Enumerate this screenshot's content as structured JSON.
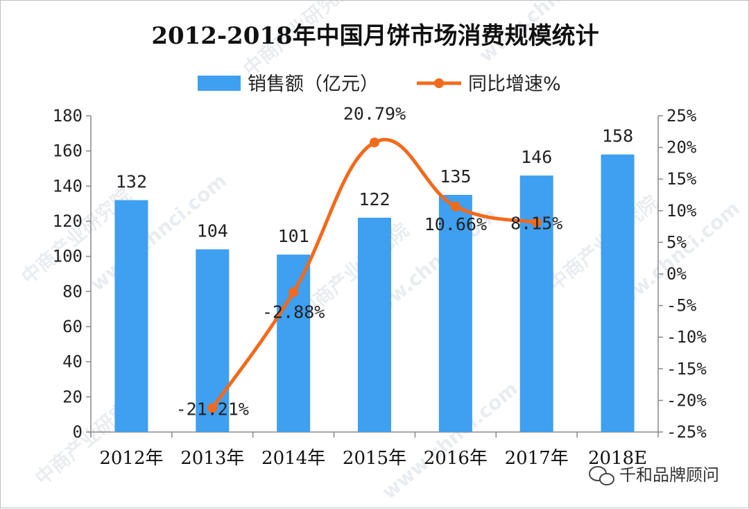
{
  "chart_data": {
    "type": "bar",
    "title": "2012-2018年中国月饼市场消费规模统计",
    "categories": [
      "2012年",
      "2013年",
      "2014年",
      "2015年",
      "2016年",
      "2017年",
      "2018E"
    ],
    "series": [
      {
        "name": "销售额（亿元）",
        "type": "bar",
        "axis": "left",
        "values": [
          132,
          104,
          101,
          122,
          135,
          146,
          158
        ],
        "labels": [
          "132",
          "104",
          "101",
          "122",
          "135",
          "146",
          "158"
        ],
        "color": "#3f9ff0"
      },
      {
        "name": "同比增速%",
        "type": "line",
        "axis": "right",
        "values": [
          null,
          -21.21,
          -2.88,
          20.79,
          10.66,
          8.15,
          null
        ],
        "labels": [
          "",
          "-21.21%",
          "-2.88%",
          "20.79%",
          "10.66%",
          "8.15%",
          ""
        ],
        "color": "#f26a1b"
      }
    ],
    "y_left": {
      "min": 0,
      "max": 180,
      "ticks": [
        "0",
        "20",
        "40",
        "60",
        "80",
        "100",
        "120",
        "140",
        "160",
        "180"
      ]
    },
    "y_right": {
      "min": -25,
      "max": 25,
      "ticks": [
        "-25%",
        "-20%",
        "-15%",
        "-10%",
        "-5%",
        "0%",
        "5%",
        "10%",
        "15%",
        "20%",
        "25%"
      ]
    },
    "legend_position": "top-center",
    "grid": false
  },
  "watermark": {
    "text_cn": "中商产业研究院",
    "text_url": "www.chnci.com"
  },
  "credit": {
    "text": "千和品牌顾问",
    "icon": "wechat-icon"
  }
}
